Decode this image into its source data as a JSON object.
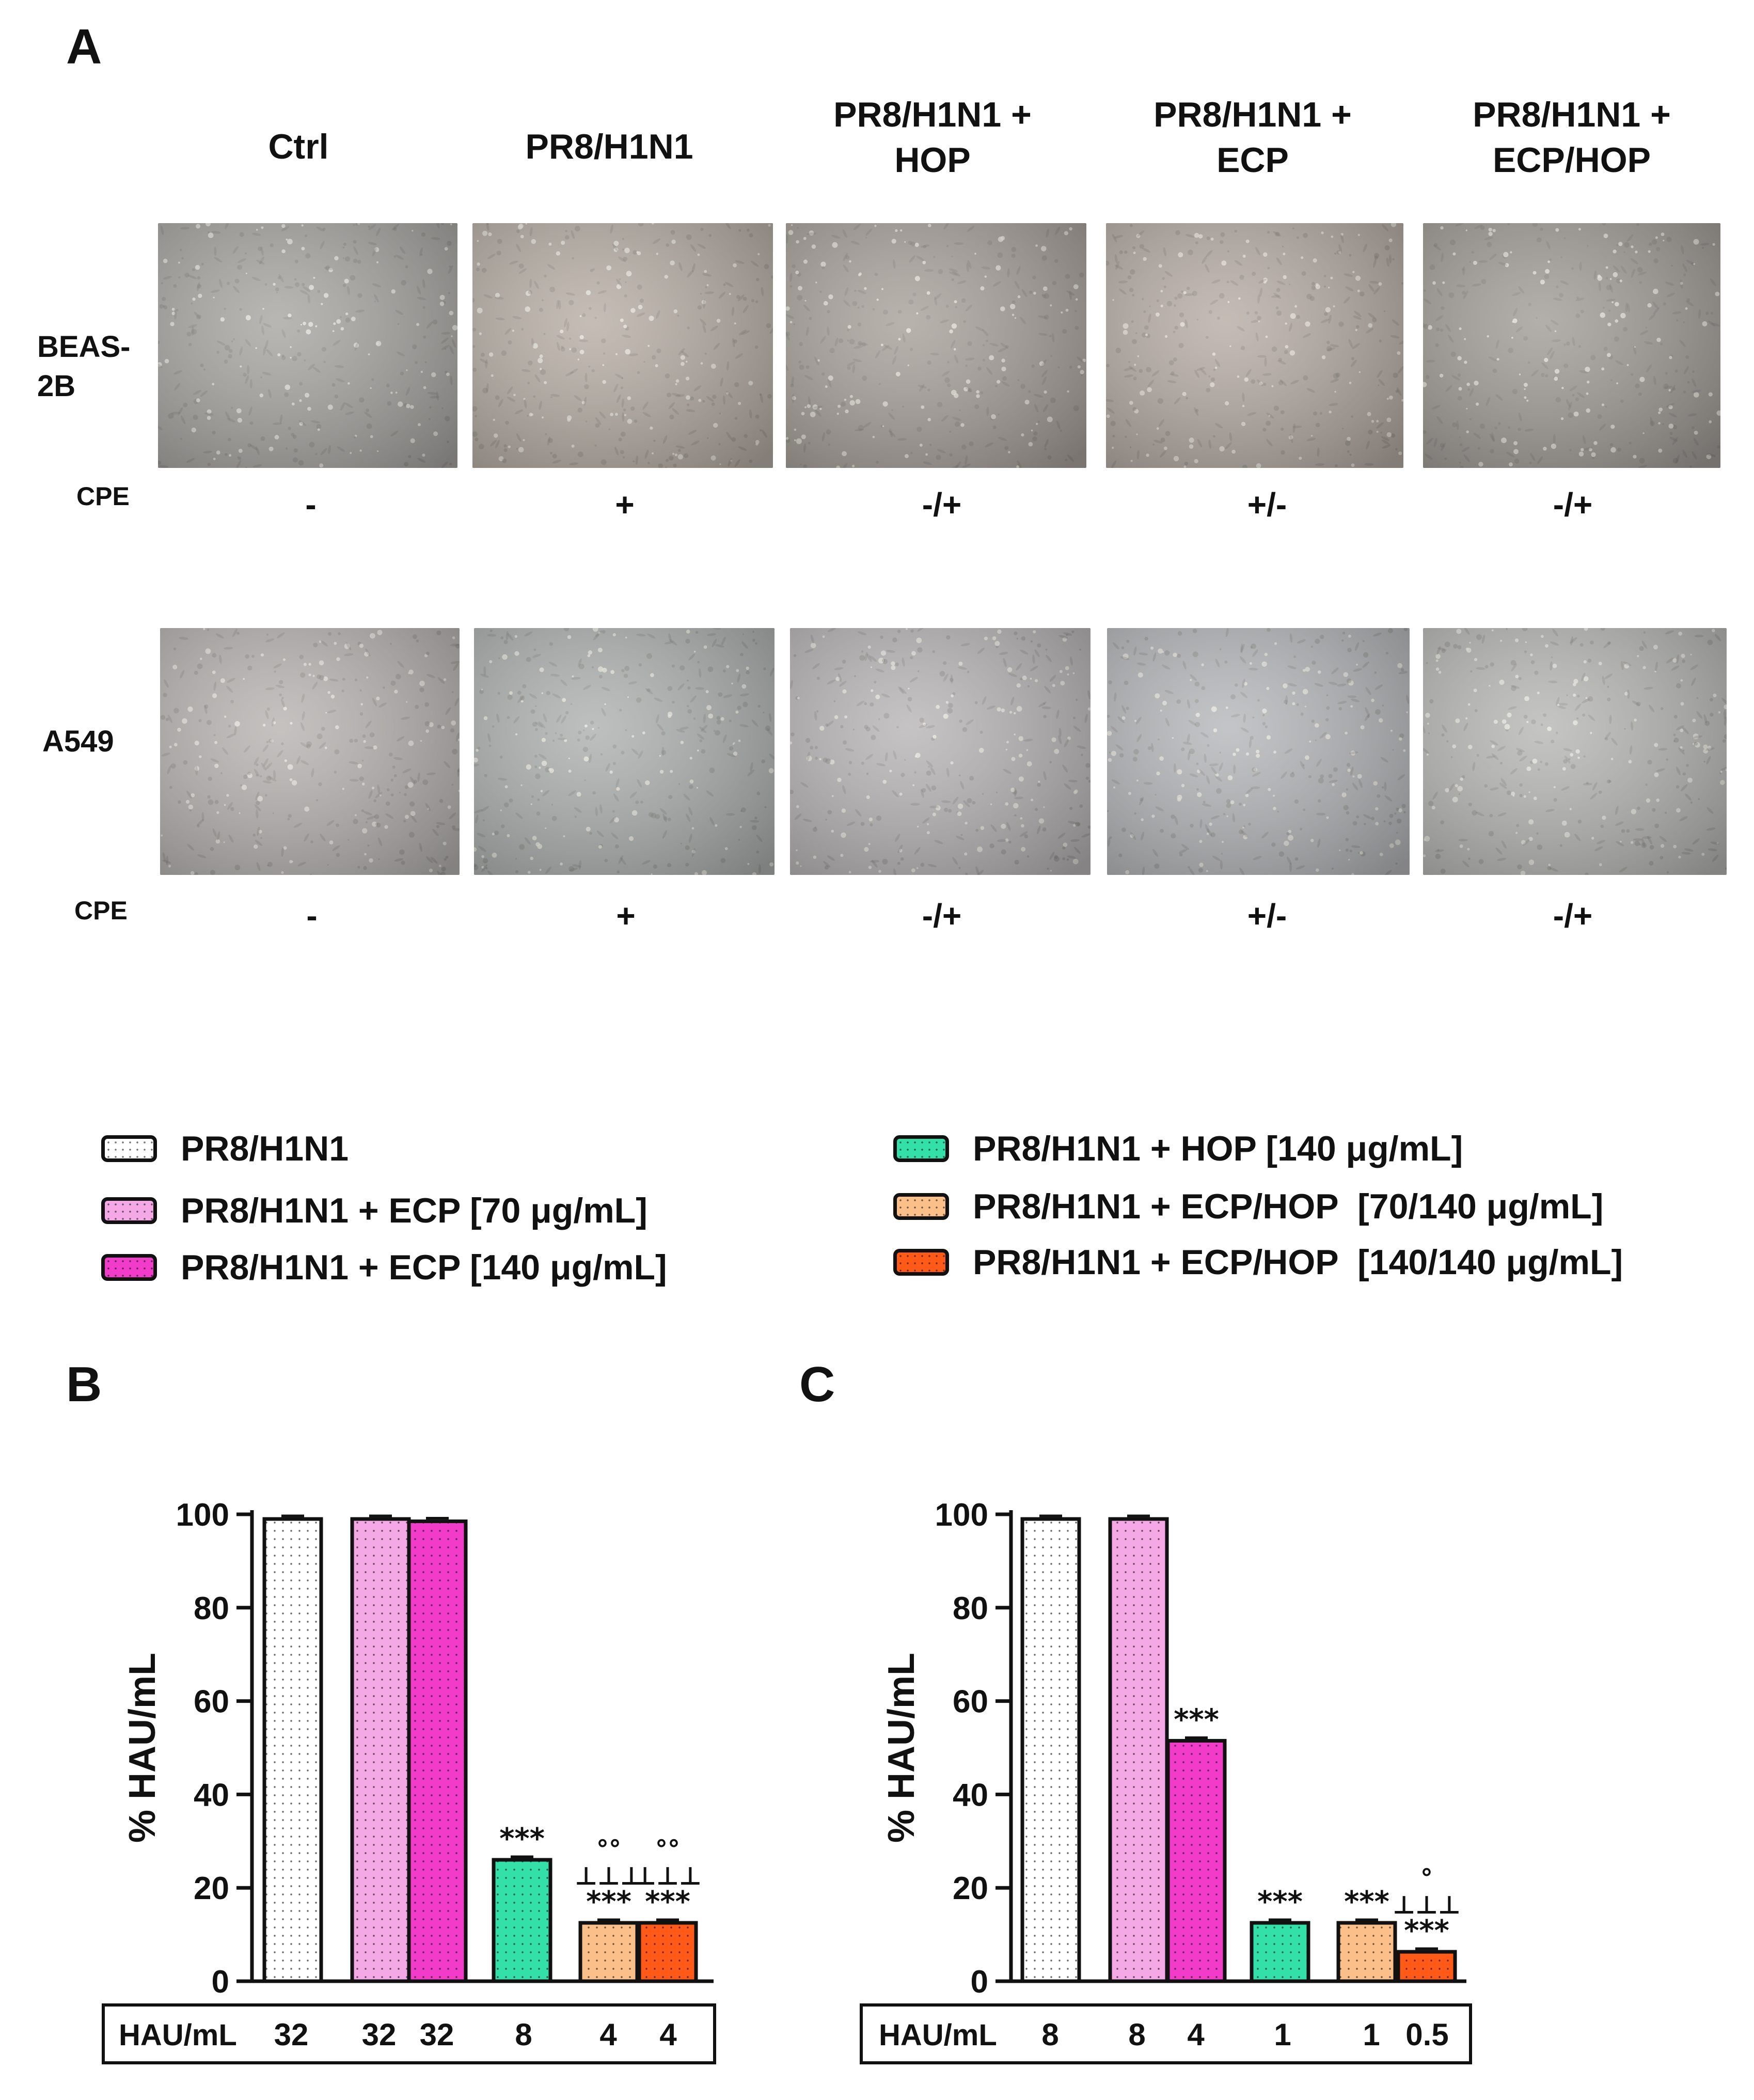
{
  "panel_a": {
    "letter": "A",
    "columns": [
      "Ctrl",
      "PR8/H1N1",
      "PR8/H1N1 +\nHOP",
      "PR8/H1N1 +\nECP",
      "PR8/H1N1 +\nECP/HOP"
    ],
    "rows": [
      {
        "label": "BEAS-\n2B",
        "cpe_label": "CPE",
        "cpe": [
          "-",
          "+",
          "-/+",
          "+/-",
          "-/+"
        ]
      },
      {
        "label": "A549",
        "cpe_label": "CPE",
        "cpe": [
          "-",
          "+",
          "-/+",
          "+/-",
          "-/+"
        ]
      }
    ]
  },
  "legend": {
    "items": [
      {
        "label": "PR8/H1N1",
        "color": "#ffffff"
      },
      {
        "label": "PR8/H1N1 + ECP [70 μg/mL]",
        "color": "#f5a8e6"
      },
      {
        "label": "PR8/H1N1 + ECP [140 μg/mL]",
        "color": "#f03cc8"
      },
      {
        "label": "PR8/H1N1 + HOP [140 μg/mL]",
        "color": "#33e0a8"
      },
      {
        "label": "PR8/H1N1 + ECP/HOP  [70/140 μg/mL]",
        "color": "#fbbf8a"
      },
      {
        "label": "PR8/H1N1 + ECP/HOP  [140/140 μg/mL]",
        "color": "#ff5a18"
      }
    ]
  },
  "chart_data": [
    {
      "panel": "B",
      "type": "bar",
      "ylabel": "% HAU/mL",
      "ylim": [
        0,
        100
      ],
      "yticks": [
        0,
        20,
        40,
        60,
        80,
        100
      ],
      "categories": [
        "PR8/H1N1",
        "PR8/H1N1 + ECP [70 μg/mL]",
        "PR8/H1N1 + ECP [140 μg/mL]",
        "PR8/H1N1 + HOP [140 μg/mL]",
        "PR8/H1N1 + ECP/HOP  [70/140 μg/mL]",
        "PR8/H1N1 + ECP/HOP  [140/140 μg/mL]"
      ],
      "values": [
        99,
        99,
        98.5,
        26,
        12.5,
        12.5
      ],
      "annotations": [
        [
          "",
          "",
          ""
        ],
        [],
        [],
        [
          "***"
        ],
        [
          "***",
          "⊥⊥⊥",
          "°°"
        ],
        [
          "***",
          "⊥⊥⊥",
          "°°"
        ]
      ],
      "table_label": "HAU/mL",
      "hau": [
        "32",
        "32",
        "32",
        "8",
        "4",
        "4"
      ]
    },
    {
      "panel": "C",
      "type": "bar",
      "ylabel": "% HAU/mL",
      "ylim": [
        0,
        100
      ],
      "yticks": [
        0,
        20,
        40,
        60,
        80,
        100
      ],
      "categories": [
        "PR8/H1N1",
        "PR8/H1N1 + ECP [70 μg/mL]",
        "PR8/H1N1 + ECP [140 μg/mL]",
        "PR8/H1N1 + HOP [140 μg/mL]",
        "PR8/H1N1 + ECP/HOP  [70/140 μg/mL]",
        "PR8/H1N1 + ECP/HOP  [140/140 μg/mL]"
      ],
      "values": [
        99,
        99,
        51.5,
        12.5,
        12.5,
        6.3
      ],
      "annotations": [
        [],
        [],
        [
          "***"
        ],
        [
          "***"
        ],
        [
          "***"
        ],
        [
          "***",
          "⊥⊥⊥",
          "°"
        ]
      ],
      "table_label": "HAU/mL",
      "hau": [
        "8",
        "8",
        "4",
        "1",
        "1",
        "0.5"
      ]
    }
  ]
}
